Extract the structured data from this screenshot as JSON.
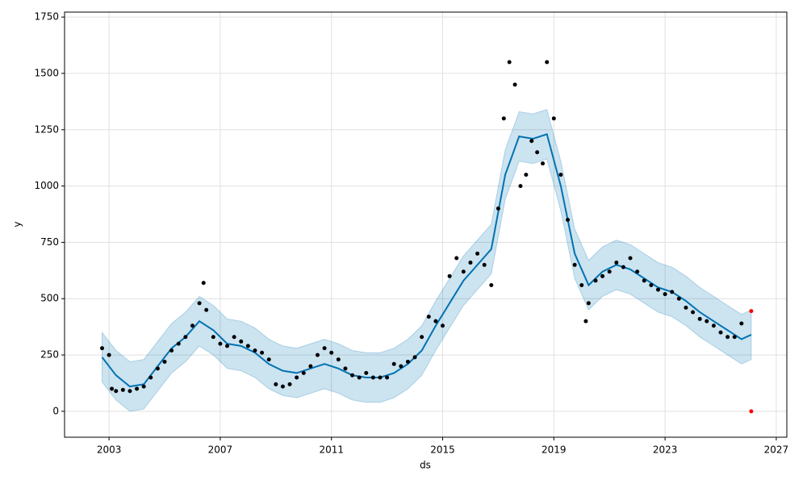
{
  "chart_data": {
    "type": "forecast",
    "xlabel": "ds",
    "ylabel": "y",
    "xlim": [
      2001.4,
      2027.38
    ],
    "ylim": [
      -115,
      1772
    ],
    "xticks": [
      2003,
      2007,
      2011,
      2015,
      2019,
      2023,
      2027
    ],
    "yticks": [
      0,
      250,
      500,
      750,
      1000,
      1250,
      1500,
      1750
    ],
    "grid": true,
    "series": [
      {
        "type": "band",
        "color": "#0072B2",
        "x": [
          2002.75,
          2003.25,
          2003.75,
          2004.25,
          2004.75,
          2005.25,
          2005.75,
          2006.25,
          2006.75,
          2007.25,
          2007.75,
          2008.25,
          2008.75,
          2009.25,
          2009.75,
          2010.25,
          2010.75,
          2011.25,
          2011.75,
          2012.25,
          2012.75,
          2013.25,
          2013.75,
          2014.25,
          2014.75,
          2015.25,
          2015.75,
          2016.25,
          2016.75,
          2017.25,
          2017.75,
          2018.25,
          2018.75,
          2019.25,
          2019.75,
          2020.25,
          2020.75,
          2021.25,
          2021.75,
          2022.25,
          2022.75,
          2023.25,
          2023.75,
          2024.25,
          2024.75,
          2025.25,
          2025.75,
          2026.1
        ],
        "lower": [
          130,
          50,
          0,
          10,
          90,
          170,
          220,
          290,
          250,
          190,
          180,
          150,
          100,
          70,
          60,
          80,
          100,
          80,
          50,
          40,
          40,
          60,
          100,
          160,
          270,
          370,
          470,
          540,
          610,
          940,
          1110,
          1100,
          1120,
          890,
          590,
          450,
          510,
          540,
          520,
          480,
          440,
          420,
          380,
          330,
          290,
          250,
          210,
          230
        ],
        "upper": [
          350,
          270,
          220,
          230,
          310,
          390,
          440,
          510,
          470,
          410,
          400,
          370,
          320,
          290,
          280,
          300,
          320,
          300,
          270,
          260,
          260,
          280,
          320,
          380,
          490,
          590,
          690,
          760,
          830,
          1160,
          1330,
          1320,
          1340,
          1110,
          810,
          670,
          730,
          760,
          740,
          700,
          660,
          640,
          600,
          550,
          510,
          470,
          430,
          450
        ]
      },
      {
        "type": "line",
        "color": "#0072B2",
        "x": [
          2002.75,
          2003.25,
          2003.75,
          2004.25,
          2004.75,
          2005.25,
          2005.75,
          2006.25,
          2006.75,
          2007.25,
          2007.75,
          2008.25,
          2008.75,
          2009.25,
          2009.75,
          2010.25,
          2010.75,
          2011.25,
          2011.75,
          2012.25,
          2012.75,
          2013.25,
          2013.75,
          2014.25,
          2014.75,
          2015.25,
          2015.75,
          2016.25,
          2016.75,
          2017.25,
          2017.75,
          2018.25,
          2018.75,
          2019.25,
          2019.75,
          2020.25,
          2020.75,
          2021.25,
          2021.75,
          2022.25,
          2022.75,
          2023.25,
          2023.75,
          2024.25,
          2024.75,
          2025.25,
          2025.75,
          2026.1
        ],
        "values": [
          240,
          160,
          110,
          120,
          200,
          280,
          330,
          400,
          360,
          300,
          290,
          260,
          210,
          180,
          170,
          190,
          210,
          190,
          160,
          150,
          150,
          170,
          210,
          270,
          380,
          480,
          580,
          650,
          720,
          1050,
          1220,
          1210,
          1230,
          1000,
          700,
          560,
          620,
          650,
          630,
          590,
          550,
          530,
          490,
          440,
          400,
          360,
          320,
          340
        ]
      },
      {
        "type": "scatter",
        "color": "#000000",
        "x": [
          2002.75,
          2003.0,
          2003.1,
          2003.25,
          2003.5,
          2003.75,
          2004.0,
          2004.25,
          2004.5,
          2004.75,
          2005.0,
          2005.25,
          2005.5,
          2005.75,
          2006.0,
          2006.25,
          2006.4,
          2006.5,
          2006.75,
          2007.0,
          2007.25,
          2007.5,
          2007.75,
          2008.0,
          2008.25,
          2008.5,
          2008.75,
          2009.0,
          2009.25,
          2009.5,
          2009.75,
          2010.0,
          2010.25,
          2010.5,
          2010.75,
          2011.0,
          2011.25,
          2011.5,
          2011.75,
          2012.0,
          2012.25,
          2012.5,
          2012.75,
          2013.0,
          2013.25,
          2013.5,
          2013.75,
          2014.0,
          2014.25,
          2014.5,
          2014.75,
          2015.0,
          2015.25,
          2015.5,
          2015.75,
          2016.0,
          2016.25,
          2016.5,
          2016.75,
          2017.0,
          2017.2,
          2017.4,
          2017.6,
          2017.8,
          2018.0,
          2018.2,
          2018.4,
          2018.6,
          2018.75,
          2019.0,
          2019.25,
          2019.5,
          2019.75,
          2020.0,
          2020.15,
          2020.25,
          2020.5,
          2020.75,
          2021.0,
          2021.25,
          2021.5,
          2021.75,
          2022.0,
          2022.25,
          2022.5,
          2022.75,
          2023.0,
          2023.25,
          2023.5,
          2023.75,
          2024.0,
          2024.25,
          2024.5,
          2024.75,
          2025.0,
          2025.25,
          2025.5,
          2025.75
        ],
        "values": [
          280,
          250,
          100,
          90,
          95,
          90,
          100,
          110,
          150,
          190,
          220,
          270,
          300,
          330,
          380,
          480,
          570,
          450,
          330,
          300,
          290,
          330,
          310,
          290,
          270,
          260,
          230,
          120,
          110,
          120,
          150,
          170,
          200,
          250,
          280,
          260,
          230,
          190,
          160,
          150,
          170,
          150,
          150,
          150,
          210,
          200,
          220,
          240,
          330,
          420,
          400,
          380,
          600,
          680,
          620,
          660,
          700,
          650,
          560,
          900,
          1300,
          1550,
          1450,
          1000,
          1050,
          1200,
          1150,
          1100,
          1550,
          1300,
          1050,
          850,
          650,
          560,
          400,
          480,
          580,
          600,
          620,
          660,
          640,
          680,
          620,
          580,
          560,
          540,
          520,
          530,
          500,
          460,
          440,
          410,
          400,
          380,
          350,
          330,
          330,
          390
        ]
      },
      {
        "type": "scatter",
        "color": "#ff0000",
        "x": [
          2026.1,
          2026.1
        ],
        "values": [
          445,
          0
        ]
      }
    ]
  }
}
